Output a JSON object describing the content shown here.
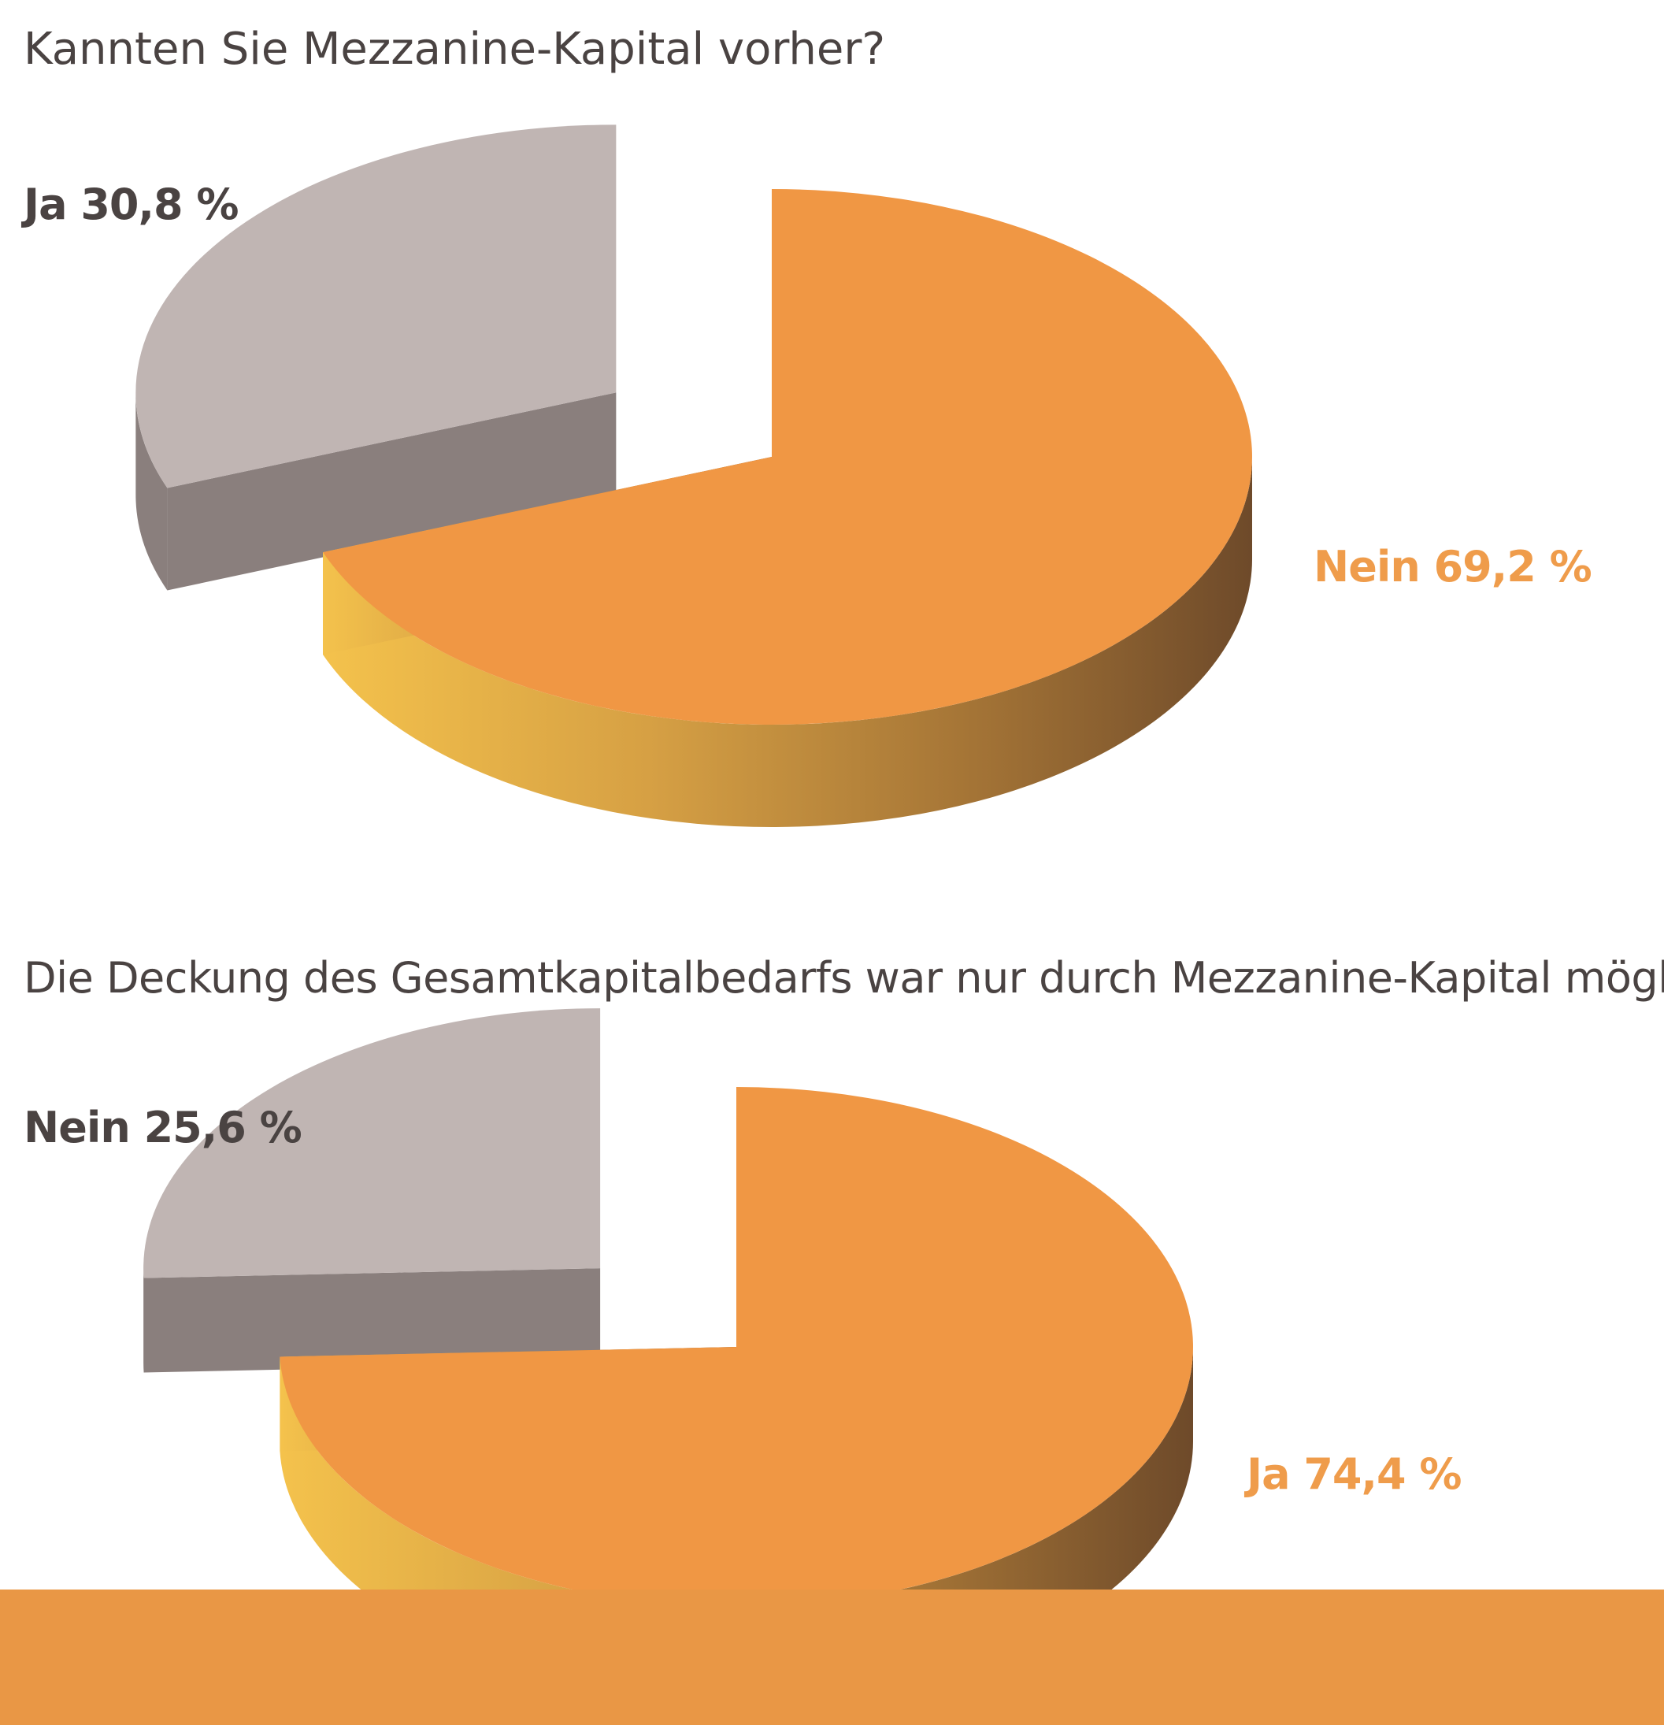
{
  "colors": {
    "orange_top": "#f09744",
    "orange_label": "#ef9c4b",
    "grey_top": "#c0b5b3",
    "grey_side": "#8a7f7d",
    "grey_label": "#4a4342",
    "bottom_bar": "#e99745"
  },
  "chart_data": [
    {
      "type": "pie",
      "title": "Kannten Sie Mezzanine-Kapital vorher?",
      "slices": [
        {
          "label": "Ja",
          "value": 30.8,
          "display": "Ja 30,8 %"
        },
        {
          "label": "Nein",
          "value": 69.2,
          "display": "Nein 69,2 %"
        }
      ]
    },
    {
      "type": "pie",
      "title": "Die Deckung des Gesamtkapitalbedarfs war nur durch Mezzanine-Kapital möglich",
      "slices": [
        {
          "label": "Nein",
          "value": 25.6,
          "display": "Nein 25,6 %"
        },
        {
          "label": "Ja",
          "value": 74.4,
          "display": "Ja 74,4 %"
        }
      ]
    }
  ]
}
